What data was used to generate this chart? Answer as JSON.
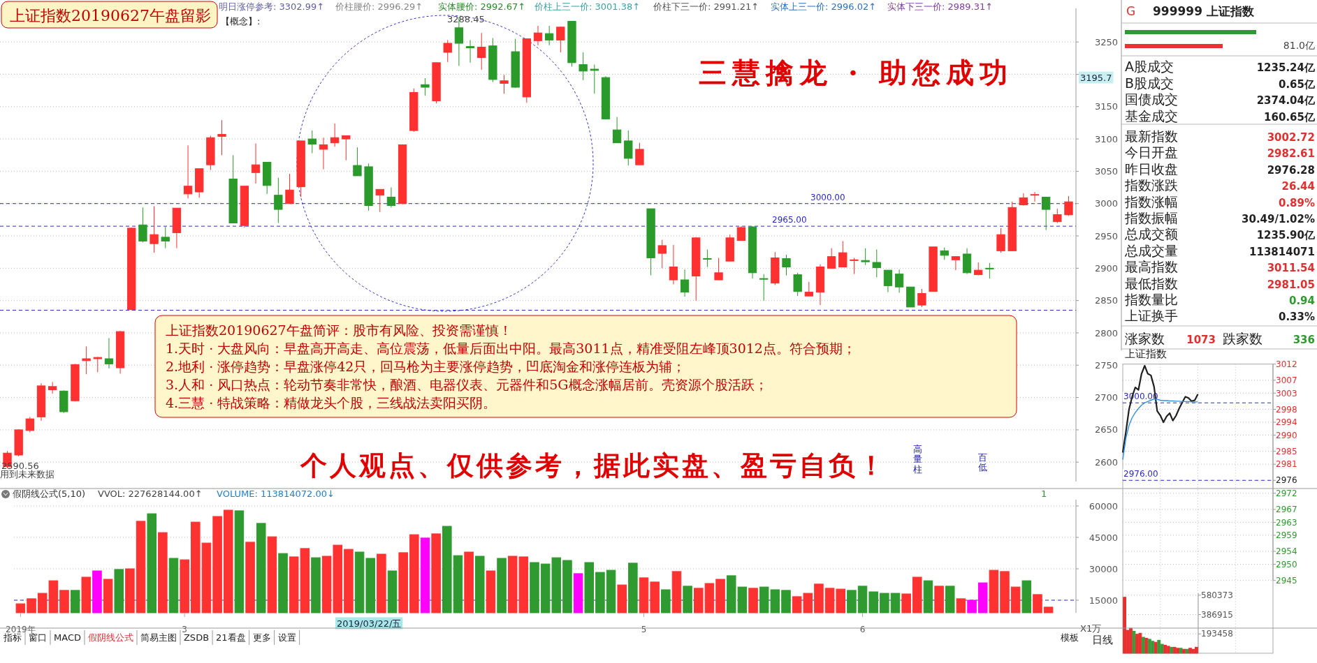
{
  "chart_data": [
    {
      "type": "candlestick",
      "title": "上证指数20190627午盘留影",
      "categories": [
        null,
        null,
        null,
        null,
        null,
        null,
        null,
        null,
        null,
        null,
        null,
        null,
        null,
        null,
        null,
        null,
        null,
        null,
        null,
        null,
        null,
        null,
        null,
        null,
        null,
        null,
        null,
        null,
        null,
        null,
        null,
        null,
        null,
        null,
        null,
        null,
        null,
        null,
        null,
        null,
        null,
        null,
        null,
        null,
        null,
        null,
        null,
        null,
        null,
        null,
        null,
        null,
        null,
        null,
        null,
        null,
        null,
        null,
        null,
        null,
        null,
        null,
        null,
        null,
        null,
        null,
        null,
        null,
        null,
        null,
        null,
        null,
        null,
        null,
        null,
        null,
        null,
        null,
        null,
        null,
        null,
        null,
        null,
        null,
        null,
        null,
        null,
        null,
        null,
        null,
        null,
        null,
        null,
        null,
        null
      ],
      "ohlc": [
        [
          2593,
          2617,
          2590.56,
          2614
        ],
        [
          2611,
          2651,
          2609,
          2650
        ],
        [
          2649,
          2670,
          2646,
          2667
        ],
        [
          2670,
          2722,
          2664,
          2718
        ],
        [
          2712,
          2724,
          2706,
          2717
        ],
        [
          2710,
          2711,
          2676,
          2678
        ],
        [
          2695,
          2752,
          2694,
          2751
        ],
        [
          2757,
          2779,
          2736,
          2760
        ],
        [
          2760,
          2763,
          2739,
          2762
        ],
        [
          2760,
          2792,
          2745,
          2752
        ],
        [
          2746,
          2803,
          2737,
          2802
        ],
        [
          2836,
          2963,
          2835,
          2962
        ],
        [
          2967,
          2994,
          2940,
          2942
        ],
        [
          2938,
          2996,
          2924,
          2952
        ],
        [
          2948,
          2964,
          2931,
          2942
        ],
        [
          2955,
          2993,
          2931,
          2993
        ],
        [
          3015,
          3090,
          3008,
          3027
        ],
        [
          3018,
          3054,
          3009,
          3054
        ],
        [
          3060,
          3105,
          3052,
          3102
        ],
        [
          3104,
          3129,
          3075,
          3107
        ],
        [
          3038,
          3075,
          2970,
          2970
        ],
        [
          2966,
          3027,
          2963,
          3027
        ],
        [
          3048,
          3093,
          3031,
          3060
        ],
        [
          3064,
          3064,
          3015,
          3028
        ],
        [
          3013,
          3040,
          2970,
          2991
        ],
        [
          3000,
          3046,
          3000,
          3021
        ],
        [
          3026,
          3097,
          3010,
          3097
        ],
        [
          3100,
          3113,
          3078,
          3092
        ],
        [
          3084,
          3102,
          3053,
          3091
        ],
        [
          3094,
          3124,
          3088,
          3102
        ],
        [
          3100,
          3105,
          3067,
          3105
        ],
        [
          3059,
          3087,
          3043,
          3043
        ],
        [
          3057,
          3062,
          2989,
          2997
        ],
        [
          3013,
          3022,
          2987,
          3022
        ],
        [
          3010,
          3025,
          2994,
          2997
        ],
        [
          3000,
          3091,
          2999,
          3091
        ],
        [
          3113,
          3178,
          3111,
          3172
        ],
        [
          3184,
          3194,
          3167,
          3180
        ],
        [
          3159,
          3218,
          3155,
          3218
        ],
        [
          3234,
          3253,
          3219,
          3248
        ],
        [
          3272,
          3288.45,
          3213,
          3248
        ],
        [
          3243,
          3253,
          3218,
          3241
        ],
        [
          3226,
          3264,
          3207,
          3242
        ],
        [
          3244,
          3256,
          3188,
          3192
        ],
        [
          3186,
          3199,
          3170,
          3190
        ],
        [
          3235,
          3255,
          3179,
          3180
        ],
        [
          3165,
          3255,
          3156,
          3255
        ],
        [
          3252,
          3275,
          3245,
          3264
        ],
        [
          3263,
          3275,
          3245,
          3253
        ],
        [
          3253,
          3274,
          3234,
          3273
        ],
        [
          3282,
          3282,
          3212,
          3218
        ],
        [
          3215,
          3234,
          3191,
          3205
        ],
        [
          3208,
          3215,
          3170,
          3206
        ],
        [
          3195,
          3197,
          3130,
          3131
        ],
        [
          3114,
          3134,
          3094,
          3094
        ],
        [
          3097,
          3113,
          3059,
          3070
        ],
        [
          3060,
          3094,
          3060,
          3084
        ],
        [
          2992,
          2992,
          2889,
          2916
        ],
        [
          2923,
          2944,
          2900,
          2935
        ],
        [
          2882,
          2936,
          2875,
          2902
        ],
        [
          2882,
          2898,
          2856,
          2863
        ],
        [
          2888,
          2948,
          2850,
          2947
        ],
        [
          2915,
          2929,
          2902,
          2914
        ],
        [
          2882,
          2916,
          2882,
          2893
        ],
        [
          2911,
          2952,
          2911,
          2947
        ],
        [
          2943,
          2965,
          2943,
          2963
        ],
        [
          2964,
          2965,
          2884,
          2893
        ],
        [
          2884,
          2891,
          2850,
          2883
        ],
        [
          2877,
          2925,
          2874,
          2916
        ],
        [
          2915,
          2921,
          2889,
          2902
        ],
        [
          2890,
          2893,
          2857,
          2864
        ],
        [
          2857,
          2879,
          2857,
          2863
        ],
        [
          2863,
          2906,
          2843,
          2902
        ],
        [
          2900,
          2931,
          2900,
          2918
        ],
        [
          2902,
          2942,
          2902,
          2924
        ],
        [
          2912,
          2916,
          2891,
          2913
        ],
        [
          2912,
          2931,
          2905,
          2910
        ],
        [
          2909,
          2929,
          2886,
          2901
        ],
        [
          2897,
          2897,
          2863,
          2873
        ],
        [
          2891,
          2898,
          2862,
          2871
        ],
        [
          2871,
          2871,
          2840,
          2840
        ],
        [
          2843,
          2868,
          2840,
          2861
        ],
        [
          2864,
          2933,
          2864,
          2933
        ],
        [
          2927,
          2932,
          2913,
          2920
        ],
        [
          2913,
          2918,
          2897,
          2918
        ],
        [
          2922,
          2931,
          2891,
          2893
        ],
        [
          2890,
          2909,
          2889,
          2897
        ],
        [
          2900,
          2908,
          2884,
          2899
        ],
        [
          2927,
          2962,
          2924,
          2952
        ],
        [
          2927,
          3003,
          2927,
          2994
        ],
        [
          2998,
          3016,
          2997,
          3009
        ],
        [
          3013,
          3018,
          3003,
          3014
        ],
        [
          3010,
          3010,
          2959,
          2991
        ],
        [
          2972,
          2992,
          2970,
          2983
        ],
        [
          2982.61,
          3011.54,
          2981.05,
          3002.72
        ]
      ],
      "ylim": [
        2570,
        3302
      ],
      "yticks": [
        2600,
        2650,
        2700,
        2750,
        2800,
        2850,
        2900,
        2950,
        3000,
        3050,
        3100,
        3150,
        {
          "value": 3200,
          "label": null
        },
        3250
      ],
      "grid": "y",
      "tick_labels": "y",
      "ref_lines": [
        {
          "axis": "y",
          "value": 3000,
          "label": "3000.00",
          "color": "#2a2ac8",
          "line_style": "dashed"
        },
        {
          "axis": "y",
          "value": 2965,
          "label": "2965.00",
          "color": "#2a2ac8",
          "line_style": "dashed"
        },
        {
          "axis": "y",
          "value": 2835,
          "color": "#2a2ac8",
          "line_style": "dashed"
        }
      ],
      "annotations": [
        "明日涨停参考: 3302.99↑",
        "价柱腰价: 2996.29↑",
        "实体腰价: 2992.67↑",
        "价柱上三一价: 3001.38↑",
        "价柱下三一价: 2991.21↑",
        "实体上三一价: 2996.02↑",
        "实体下三一价: 2989.31↑",
        "【概念】:",
        "三慧擒龙 · 助您成功",
        "上证指数20190627午盘简评：股市有风险、投资需谨慎！",
        "1.天时 · 大盘风向：早盘高开高走、高位震荡，低量后面出中阳。最高3011点，精准受阻左峰顶3012点。符合预期；",
        "2.地利 · 涨停趋势：早盘涨停42只，回马枪为主要涨停趋势，凹底淘金和涨停连板为辅；",
        "3.人和 · 风口热点：轮动节奏非常快，酿酒、电器仪表、元器件和5G概念涨幅居前。壳资源个股活跃；",
        "4.三慧 · 特战策略：精做龙头个股，三线战法卖阳买阴。",
        "个人观点、仅供参考，据此实盘、盈亏自负！",
        "3288.45",
        "2590.56",
        "用到未来数据",
        "3195.7"
      ]
    },
    {
      "type": "bar",
      "title": "假阴线公式(5,10)",
      "categories": [
        "2019年",
        null,
        null,
        null,
        null,
        null,
        null,
        null,
        null,
        null,
        null,
        null,
        null,
        null,
        null,
        "3",
        null,
        null,
        null,
        null,
        null,
        null,
        null,
        null,
        null,
        null,
        null,
        null,
        null,
        null,
        null,
        null,
        null,
        null,
        null,
        null,
        null,
        null,
        null,
        null,
        null,
        null,
        null,
        null,
        null,
        null,
        null,
        null,
        null,
        null,
        null,
        null,
        null,
        null,
        null,
        null,
        null,
        "5",
        null,
        null,
        null,
        null,
        null,
        null,
        null,
        null,
        null,
        null,
        null,
        null,
        null,
        null,
        null,
        null,
        null,
        null,
        null,
        "6",
        null,
        null,
        null,
        null,
        null,
        null,
        null,
        null,
        null,
        null,
        null,
        null,
        null,
        null,
        null,
        null,
        null
      ],
      "values": [
        13300,
        15700,
        18300,
        24300,
        19700,
        19700,
        26000,
        29000,
        25000,
        29700,
        30000,
        52700,
        56300,
        47300,
        35000,
        34300,
        52300,
        42300,
        55000,
        58000,
        57700,
        42700,
        51700,
        45300,
        37300,
        35700,
        39700,
        35300,
        36000,
        41300,
        39300,
        38000,
        35000,
        37000,
        29000,
        37700,
        46300,
        44700,
        46700,
        50300,
        36300,
        38000,
        36000,
        29000,
        35000,
        36000,
        35700,
        33000,
        32300,
        35300,
        34000,
        27700,
        33000,
        28300,
        29300,
        22300,
        32700,
        25700,
        23700,
        20000,
        28700,
        21700,
        20700,
        23000,
        25000,
        26700,
        21300,
        20700,
        21300,
        20000,
        19700,
        16700,
        18300,
        22700,
        20700,
        20300,
        19700,
        21700,
        19000,
        18300,
        18300,
        18000,
        26000,
        24300,
        21700,
        21700,
        15700,
        15000,
        23300,
        29300,
        28700,
        21300,
        24300,
        17700,
        11700
      ],
      "colors": [
        "#ff3232",
        "#ff3232",
        "#ff3232",
        "#ff3232",
        "#ff3232",
        "#2f9a2f",
        "#ff3232",
        "#ff00ff",
        "#ff3232",
        "#2f9a2f",
        "#ff3232",
        "#ff3232",
        "#2f9a2f",
        "#ff3232",
        "#2f9a2f",
        "#ff3232",
        "#ff3232",
        "#ff3232",
        "#ff3232",
        "#ff3232",
        "#2f9a2f",
        "#ff3232",
        "#2f9a2f",
        "#ff3232",
        "#2f9a2f",
        "#ff3232",
        "#ff3232",
        "#2f9a2f",
        "#ff3232",
        "#ff3232",
        "#ff3232",
        "#2f9a2f",
        "#2f9a2f",
        "#ff3232",
        "#2f9a2f",
        "#ff3232",
        "#ff3232",
        "#ff00ff",
        "#ff3232",
        "#2f9a2f",
        "#2f9a2f",
        "#ff3232",
        "#2f9a2f",
        "#ff3232",
        "#2f9a2f",
        "#ff3232",
        "#ff3232",
        "#2f9a2f",
        "#2f9a2f",
        "#2f9a2f",
        "#2f9a2f",
        "#ff00ff",
        "#2f9a2f",
        "#2f9a2f",
        "#2f9a2f",
        "#ff3232",
        "#2f9a2f",
        "#ff3232",
        "#ff3232",
        "#2f9a2f",
        "#ff3232",
        "#2f9a2f",
        "#ff3232",
        "#ff3232",
        "#ff3232",
        "#2f9a2f",
        "#2f9a2f",
        "#ff3232",
        "#2f9a2f",
        "#2f9a2f",
        "#2f9a2f",
        "#ff3232",
        "#ff3232",
        "#ff3232",
        "#ff3232",
        "#ff3232",
        "#2f9a2f",
        "#2f9a2f",
        "#2f9a2f",
        "#2f9a2f",
        "#2f9a2f",
        "#ff3232",
        "#ff3232",
        "#2f9a2f",
        "#ff3232",
        "#2f9a2f",
        "#ff3232",
        "#ff00ff",
        "#ff00ff",
        "#ff3232",
        "#ff3232",
        "#ff3232",
        "#2f9a2f",
        "#ff3232",
        "#ff3232"
      ],
      "ylim": [
        9000,
        63000
      ],
      "yticks": [
        15000,
        30000,
        45000,
        60000
      ],
      "grid": "y",
      "ref_lines": [
        {
          "axis": "y",
          "value": 15000,
          "color": "#2a2ac8",
          "line_style": "dashed"
        }
      ],
      "annotations": [
        "VVOL: 227628144.00↑",
        "VOLUME: 113814072.00↓",
        "高量柱",
        "百低",
        "2019/03/22/五",
        "X1万",
        "1"
      ]
    },
    {
      "type": "other",
      "title": "999999 上证指数",
      "categories": [
        "A股成交",
        "B股成交",
        "国债成交",
        "基金成交",
        "最新指数",
        "今日开盘",
        "昨日收盘",
        "指数涨跌",
        "指数涨幅",
        "指数振幅",
        "总成交额",
        "总成交量",
        "最高指数",
        "最低指数",
        "指数量比",
        "上证换手"
      ],
      "value_labels": [
        "1235.24亿",
        "0.65亿",
        "2374.04亿",
        "160.65亿",
        "3002.72",
        "2982.61",
        "2976.28",
        "26.44",
        "0.89%",
        "30.49/1.02%",
        "1235.90亿",
        "113814071",
        "3011.54",
        "2981.05",
        "0.94",
        "0.33%"
      ],
      "colors": [
        "#222222",
        "#222222",
        "#222222",
        "#222222",
        "#e03030",
        "#e03030",
        "#222222",
        "#e03030",
        "#e03030",
        "#222222",
        "#222222",
        "#222222",
        "#e03030",
        "#e03030",
        "#2f9a2f",
        "#222222"
      ],
      "annotations": [
        "G",
        "81.0亿",
        "涨家数",
        "1073",
        "跌家数",
        "336"
      ]
    },
    {
      "type": "line",
      "title": "上证指数",
      "categories": [
        null,
        null,
        null,
        null,
        null,
        null,
        null,
        null,
        null,
        null,
        null,
        null,
        null,
        null,
        null,
        null,
        null,
        null,
        null,
        null,
        null,
        null,
        null,
        null,
        null,
        null,
        null,
        null,
        null,
        null,
        null,
        null,
        null,
        null,
        null,
        null,
        null,
        null,
        null,
        null,
        null,
        null,
        null,
        null,
        null,
        null,
        null,
        null,
        null
      ],
      "series": [
        {
          "color": "#202020",
          "values": [
            2984.6,
            2991,
            2998,
            3001.9,
            3004.8,
            3004,
            3009,
            3011.5,
            3009,
            3008.5,
            3005,
            2997.5,
            2996.1,
            2994.0,
            2995.8,
            2996.8,
            2994.5,
            2996,
            2998.2,
            3000.1,
            3001.9,
            3001.5,
            3000.5,
            3000.8,
            3002.7,
            null,
            null,
            null,
            null,
            null,
            null,
            null,
            null,
            null,
            null,
            null,
            null,
            null,
            null,
            null,
            null,
            null,
            null,
            null,
            null,
            null,
            null,
            null,
            null
          ]
        },
        {
          "color": "#3090e0",
          "values": [
            2982.4,
            2989,
            2993,
            2995.4,
            2997,
            2998.2,
            2999.3,
            3000,
            3000.4,
            3000.8,
            3001.2,
            3001.1,
            3000.8,
            3000.7,
            3000.7,
            3000.6,
            3000.6,
            3000.5,
            3000.5,
            3000.4,
            3000.4,
            3000.4,
            3000.3,
            3000.3,
            3000.3,
            null,
            null,
            null,
            null,
            null,
            null,
            null,
            null,
            null,
            null,
            null,
            null,
            null,
            null,
            null,
            null,
            null,
            null,
            null,
            null,
            null,
            null,
            null,
            null
          ]
        }
      ],
      "ylim": [
        2945,
        3012
      ],
      "yticks": [
        2945,
        2950,
        2954,
        2959,
        2963,
        2967,
        2972,
        2976,
        2981,
        2985,
        2990,
        2994,
        2998,
        3003,
        3007,
        3012
      ],
      "grid": true,
      "tick_labels": "y",
      "ref_lines": [
        {
          "axis": "y",
          "value": 3000,
          "label": "3000.00",
          "color": "#2a2ac8",
          "line_style": "dashed"
        },
        {
          "axis": "y",
          "value": 2976,
          "label": "2976.00",
          "color": "#2a2ac8",
          "line_style": "dashed"
        }
      ]
    },
    {
      "type": "bar",
      "categories": [
        null,
        null,
        null,
        null,
        null,
        null,
        null,
        null,
        null,
        null,
        null,
        null,
        null,
        null,
        null,
        null,
        null,
        null,
        null,
        null,
        null,
        null,
        null,
        null
      ],
      "values": [
        560000,
        230000,
        250000,
        220000,
        190000,
        200000,
        160000,
        150000,
        140000,
        120000,
        110000,
        130000,
        90000,
        80000,
        70000,
        60000,
        60000,
        50000,
        50000,
        40000,
        40000,
        50000,
        40000,
        60000
      ],
      "colors": [
        "#e83030",
        "#e83030",
        "#e83030",
        "#3a9a3a",
        "#e83030",
        "#e83030",
        "#3a9a3a",
        "#e83030",
        "#3a9a3a",
        "#3a9a3a",
        "#e83030",
        "#3a9a3a",
        "#3a9a3a",
        "#e83030",
        "#e83030",
        "#3a9a3a",
        "#e83030",
        "#e83030",
        "#3a9a3a",
        "#e83030",
        "#3a9a3a",
        "#e83030",
        "#e83030",
        "#e83030"
      ],
      "ylim": [
        0,
        600000
      ],
      "yticks": [
        193458,
        386915,
        580373
      ],
      "grid": "y",
      "tick_labels": "y"
    },
    {
      "type": "other",
      "categories": [
        "指标",
        "窗口",
        "MACD",
        "假阴线公式",
        "简易主图",
        "ZSDB",
        "21看盘",
        "更多",
        "设置"
      ],
      "annotations": [
        "模板",
        "日线"
      ]
    }
  ]
}
